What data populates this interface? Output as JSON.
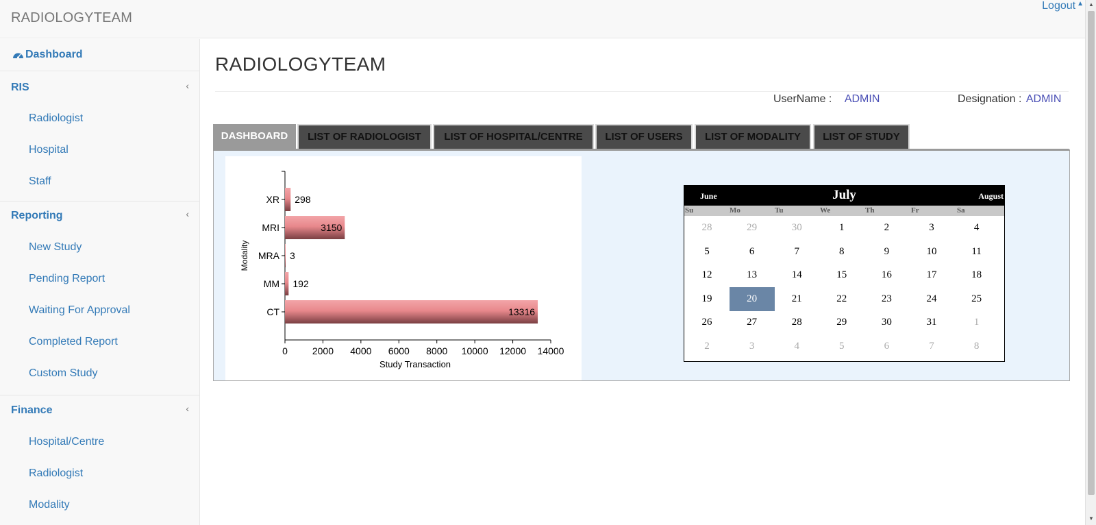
{
  "app": {
    "brand": "RADIOLOGYTEAM",
    "logout": "Logout"
  },
  "sidebar": {
    "dashboard": "Dashboard",
    "sections": [
      {
        "title": "RIS",
        "items": [
          "Radiologist",
          "Hospital",
          "Staff"
        ]
      },
      {
        "title": "Reporting",
        "items": [
          "New Study",
          "Pending Report",
          "Waiting For Approval",
          "Completed Report",
          "Custom Study"
        ]
      },
      {
        "title": "Finance",
        "items": [
          "Hospital/Centre",
          "Radiologist",
          "Modality"
        ]
      }
    ]
  },
  "main": {
    "title": "RADIOLOGYTEAM",
    "username_label": "UserName :",
    "username_value": "ADMIN",
    "designation_label": "Designation :",
    "designation_value": "ADMIN",
    "tabs": [
      "DASHBOARD",
      "LIST OF RADIOLOGIST",
      "LIST OF HOSPITAL/CENTRE",
      "LIST OF USERS",
      "LIST OF MODALITY",
      "LIST OF STUDY"
    ]
  },
  "calendar": {
    "prev": "June",
    "month": "July",
    "next": "August",
    "weekdays": [
      "Su",
      "Mo",
      "Tu",
      "We",
      "Th",
      "Fr",
      "Sa"
    ],
    "weeks": [
      [
        "28",
        "29",
        "30",
        "1",
        "2",
        "3",
        "4"
      ],
      [
        "5",
        "6",
        "7",
        "8",
        "9",
        "10",
        "11"
      ],
      [
        "12",
        "13",
        "14",
        "15",
        "16",
        "17",
        "18"
      ],
      [
        "19",
        "20",
        "21",
        "22",
        "23",
        "24",
        "25"
      ],
      [
        "26",
        "27",
        "28",
        "29",
        "30",
        "31",
        "1"
      ],
      [
        "2",
        "3",
        "4",
        "5",
        "6",
        "7",
        "8"
      ]
    ],
    "selected": "20"
  },
  "chart_data": {
    "type": "bar",
    "orientation": "horizontal",
    "categories": [
      "XR",
      "MRI",
      "MRA",
      "MM",
      "CT"
    ],
    "values": [
      298,
      3150,
      3,
      192,
      13316
    ],
    "xlabel": "Study Transaction",
    "ylabel": "Modality",
    "xlim": [
      0,
      14000
    ],
    "xticks": [
      "0",
      "2000",
      "4000",
      "6000",
      "8000",
      "10000",
      "12000",
      "14000"
    ],
    "bar_color": "#e8888c"
  }
}
